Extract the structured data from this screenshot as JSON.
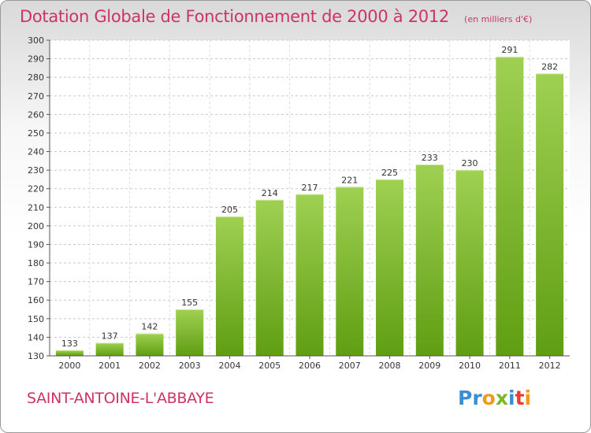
{
  "header": {
    "title": "Dotation Globale de Fonctionnement de 2000 à 2012",
    "subtitle": "(en milliers d'€)"
  },
  "footer": {
    "commune": "SAINT-ANTOINE-L'ABBAYE",
    "logo": "Proxiti"
  },
  "colors": {
    "accent": "#cc3366",
    "bar_top": "#9fd052",
    "bar_bottom": "#5f9e12"
  },
  "chart_data": {
    "type": "bar",
    "categories": [
      "2000",
      "2001",
      "2002",
      "2003",
      "2004",
      "2005",
      "2006",
      "2007",
      "2008",
      "2009",
      "2010",
      "2011",
      "2012"
    ],
    "values": [
      133,
      137,
      142,
      155,
      205,
      214,
      217,
      221,
      225,
      233,
      230,
      291,
      282
    ],
    "ylim": [
      130,
      300
    ],
    "yticks": [
      130,
      140,
      150,
      160,
      170,
      180,
      190,
      200,
      210,
      220,
      230,
      240,
      250,
      260,
      270,
      280,
      290,
      300
    ],
    "grid": "horizontal dashed",
    "legend": "none"
  }
}
